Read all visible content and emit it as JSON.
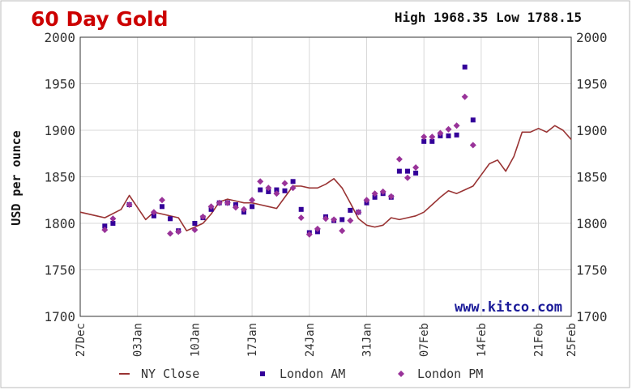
{
  "chart_data": {
    "type": "line",
    "title": "60 Day Gold",
    "header_stats": "High 1968.35 Low 1788.15",
    "ylabel": "USD per ounce",
    "ylim": [
      1700,
      2000
    ],
    "yticks": [
      "1700",
      "1750",
      "1800",
      "1850",
      "1900",
      "1950",
      "2000"
    ],
    "xlim": [
      0,
      60
    ],
    "xtick_labels": [
      "27Dec",
      "03Jan",
      "10Jan",
      "17Jan",
      "24Jan",
      "31Jan",
      "07Feb",
      "14Feb",
      "21Feb",
      "25Feb"
    ],
    "xtick_positions": [
      0,
      7,
      14,
      21,
      28,
      35,
      42,
      49,
      56,
      60
    ],
    "grid": true,
    "watermark": "www.kitco.com",
    "legend_position": "bottom",
    "colors": {
      "title": "#cc0000",
      "ny_close": "#993333",
      "london_am": "#330099",
      "london_pm": "#993399",
      "grid": "#d8d8d8",
      "watermark": "#1a1a99",
      "frame": "#333333"
    },
    "series": [
      {
        "name": "NY Close",
        "style": "line",
        "points": [
          [
            0,
            1812
          ],
          [
            2,
            1808
          ],
          [
            3,
            1806
          ],
          [
            5,
            1815
          ],
          [
            6,
            1830
          ],
          [
            8,
            1804
          ],
          [
            9,
            1812
          ],
          [
            10,
            1810
          ],
          [
            12,
            1806
          ],
          [
            13,
            1792
          ],
          [
            14,
            1796
          ],
          [
            15,
            1800
          ],
          [
            16,
            1810
          ],
          [
            17,
            1823
          ],
          [
            18,
            1826
          ],
          [
            19,
            1824
          ],
          [
            20,
            1822
          ],
          [
            21,
            1822
          ],
          [
            22,
            1820
          ],
          [
            23,
            1818
          ],
          [
            24,
            1816
          ],
          [
            26,
            1840
          ],
          [
            27,
            1840
          ],
          [
            28,
            1838
          ],
          [
            29,
            1838
          ],
          [
            30,
            1842
          ],
          [
            31,
            1848
          ],
          [
            32,
            1838
          ],
          [
            33,
            1822
          ],
          [
            34,
            1805
          ],
          [
            35,
            1798
          ],
          [
            36,
            1796
          ],
          [
            37,
            1798
          ],
          [
            38,
            1806
          ],
          [
            39,
            1804
          ],
          [
            40,
            1806
          ],
          [
            41,
            1808
          ],
          [
            42,
            1812
          ],
          [
            43,
            1820
          ],
          [
            44,
            1828
          ],
          [
            45,
            1835
          ],
          [
            46,
            1832
          ],
          [
            47,
            1836
          ],
          [
            48,
            1840
          ],
          [
            49,
            1852
          ],
          [
            50,
            1864
          ],
          [
            51,
            1868
          ],
          [
            52,
            1856
          ],
          [
            53,
            1872
          ],
          [
            54,
            1898
          ],
          [
            55,
            1898
          ],
          [
            56,
            1902
          ],
          [
            57,
            1898
          ],
          [
            58,
            1905
          ],
          [
            59,
            1900
          ],
          [
            60,
            1890
          ]
        ]
      },
      {
        "name": "London AM",
        "style": "square",
        "points": [
          [
            3,
            1797
          ],
          [
            4,
            1800
          ],
          [
            6,
            1820
          ],
          [
            9,
            1808
          ],
          [
            10,
            1818
          ],
          [
            11,
            1805
          ],
          [
            12,
            1792
          ],
          [
            14,
            1800
          ],
          [
            15,
            1806
          ],
          [
            16,
            1815
          ],
          [
            17,
            1822
          ],
          [
            18,
            1822
          ],
          [
            19,
            1820
          ],
          [
            20,
            1812
          ],
          [
            21,
            1818
          ],
          [
            22,
            1836
          ],
          [
            23,
            1834
          ],
          [
            24,
            1836
          ],
          [
            25,
            1835
          ],
          [
            26,
            1845
          ],
          [
            27,
            1815
          ],
          [
            28,
            1790
          ],
          [
            29,
            1791
          ],
          [
            30,
            1807
          ],
          [
            31,
            1803
          ],
          [
            32,
            1804
          ],
          [
            33,
            1814
          ],
          [
            34,
            1812
          ],
          [
            35,
            1822
          ],
          [
            36,
            1828
          ],
          [
            37,
            1832
          ],
          [
            38,
            1828
          ],
          [
            39,
            1856
          ],
          [
            40,
            1856
          ],
          [
            41,
            1854
          ],
          [
            42,
            1888
          ],
          [
            43,
            1888
          ],
          [
            44,
            1894
          ],
          [
            45,
            1894
          ],
          [
            46,
            1895
          ],
          [
            47,
            1968
          ],
          [
            48,
            1911
          ]
        ]
      },
      {
        "name": "London PM",
        "style": "diamond",
        "points": [
          [
            3,
            1793
          ],
          [
            4,
            1805
          ],
          [
            6,
            1820
          ],
          [
            9,
            1812
          ],
          [
            10,
            1825
          ],
          [
            11,
            1789
          ],
          [
            12,
            1791
          ],
          [
            14,
            1793
          ],
          [
            15,
            1807
          ],
          [
            16,
            1818
          ],
          [
            17,
            1822
          ],
          [
            18,
            1822
          ],
          [
            19,
            1817
          ],
          [
            20,
            1815
          ],
          [
            21,
            1825
          ],
          [
            22,
            1845
          ],
          [
            23,
            1838
          ],
          [
            24,
            1832
          ],
          [
            25,
            1843
          ],
          [
            26,
            1838
          ],
          [
            27,
            1806
          ],
          [
            28,
            1788
          ],
          [
            29,
            1794
          ],
          [
            30,
            1805
          ],
          [
            31,
            1804
          ],
          [
            32,
            1792
          ],
          [
            33,
            1803
          ],
          [
            34,
            1812
          ],
          [
            35,
            1825
          ],
          [
            36,
            1832
          ],
          [
            37,
            1834
          ],
          [
            38,
            1829
          ],
          [
            39,
            1869
          ],
          [
            40,
            1849
          ],
          [
            41,
            1860
          ],
          [
            42,
            1893
          ],
          [
            43,
            1893
          ],
          [
            44,
            1897
          ],
          [
            45,
            1901
          ],
          [
            46,
            1905
          ],
          [
            47,
            1936
          ],
          [
            48,
            1884
          ]
        ]
      }
    ]
  }
}
